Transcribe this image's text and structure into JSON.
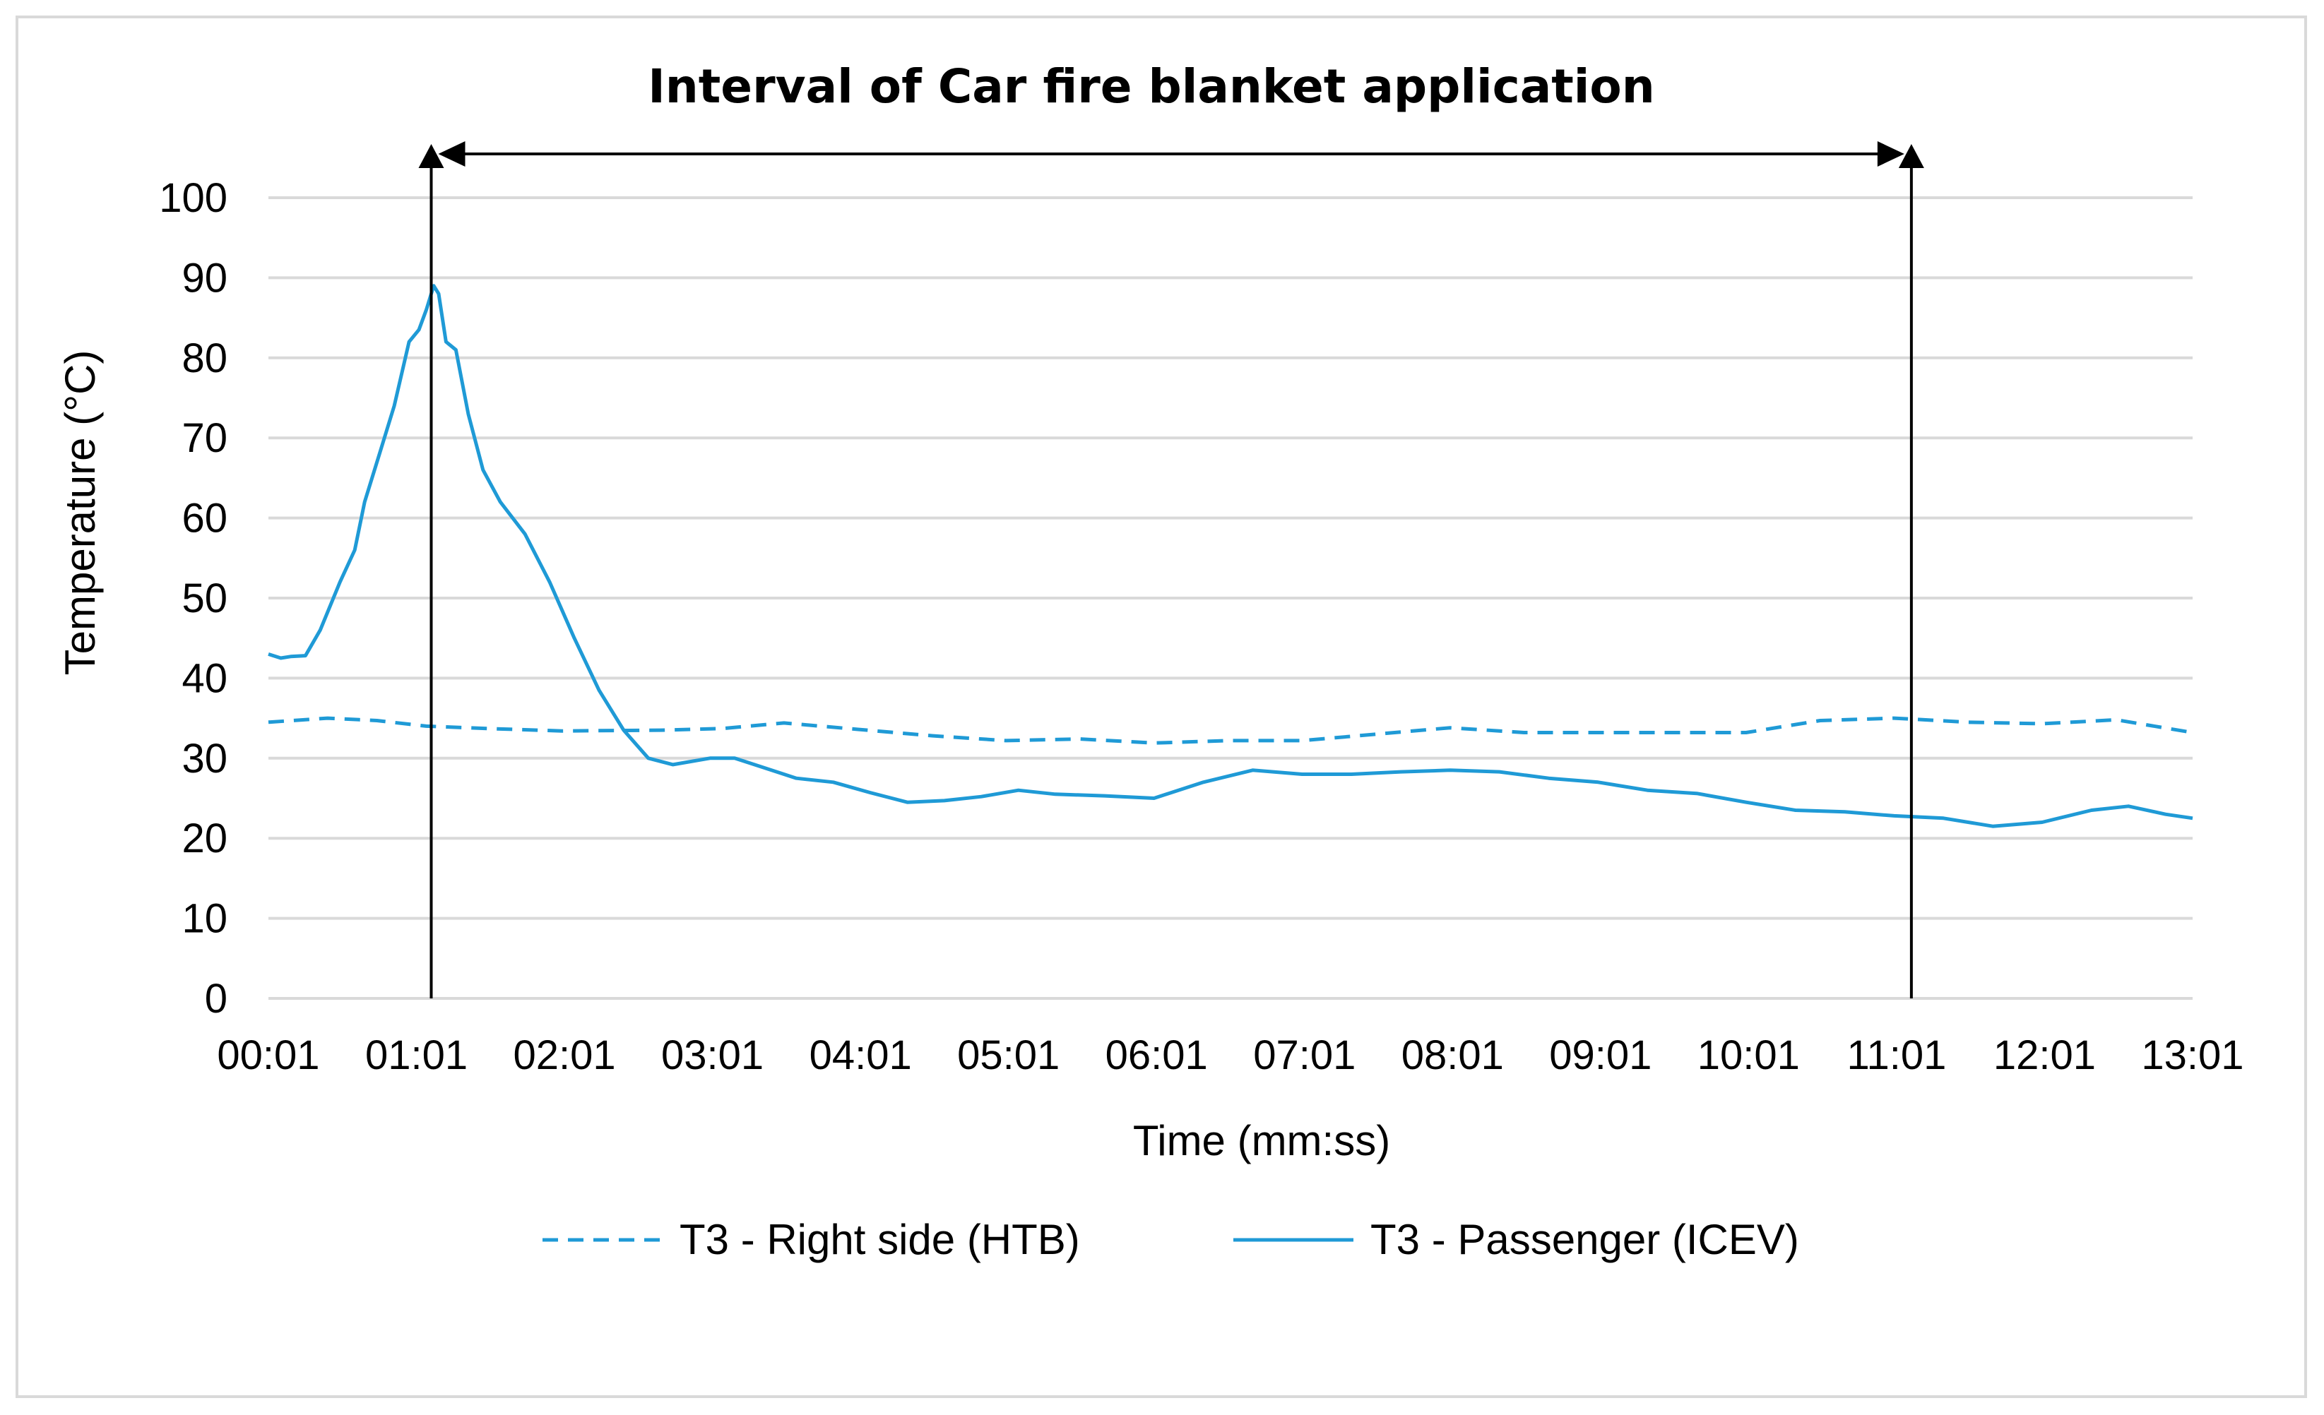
{
  "chart_data": {
    "type": "line",
    "title": "",
    "xlabel": "Time (mm:ss)",
    "ylabel": "Temperature (°C)",
    "ylim": [
      0,
      100
    ],
    "yticks": [
      0,
      10,
      20,
      30,
      40,
      50,
      60,
      70,
      80,
      90,
      100
    ],
    "xticks": [
      "00:01",
      "01:01",
      "02:01",
      "03:01",
      "04:01",
      "05:01",
      "06:01",
      "07:01",
      "08:01",
      "09:01",
      "10:01",
      "11:01",
      "12:01",
      "13:01"
    ],
    "xlim": [
      "00:01",
      "13:01"
    ],
    "grid": "horizontal",
    "legend_position": "bottom",
    "annotation": {
      "text": "Interval of Car fire blanket application",
      "start": "01:07",
      "end": "11:07"
    },
    "colors": {
      "series": "#1f9ad6",
      "grid": "#d9d9d9",
      "annotation": "#000000"
    },
    "series": [
      {
        "name": "T3 - Right side (HTB)",
        "style": "dashed",
        "x": [
          "00:01",
          "00:25",
          "00:45",
          "01:05",
          "01:30",
          "02:00",
          "02:40",
          "03:05",
          "03:30",
          "04:00",
          "04:30",
          "05:00",
          "05:30",
          "06:00",
          "06:30",
          "07:00",
          "07:30",
          "08:00",
          "08:30",
          "09:00",
          "09:30",
          "10:00",
          "10:30",
          "11:00",
          "11:30",
          "12:00",
          "12:30",
          "13:01"
        ],
        "values": [
          34.5,
          35,
          34.7,
          34,
          33.7,
          33.4,
          33.5,
          33.7,
          34.4,
          33.6,
          32.8,
          32.2,
          32.4,
          31.9,
          32.2,
          32.2,
          33,
          33.8,
          33.2,
          33.2,
          33.2,
          33.2,
          34.7,
          35,
          34.5,
          34.3,
          34.8,
          33.2
        ]
      },
      {
        "name": "T3 - Passenger (ICEV)",
        "style": "solid",
        "x": [
          "00:01",
          "00:06",
          "00:10",
          "00:16",
          "00:22",
          "00:30",
          "00:36",
          "00:40",
          "00:46",
          "00:52",
          "00:58",
          "01:02",
          "01:05",
          "01:08",
          "01:10",
          "01:13",
          "01:17",
          "01:22",
          "01:28",
          "01:35",
          "01:45",
          "01:55",
          "02:05",
          "02:15",
          "02:25",
          "02:35",
          "02:45",
          "03:00",
          "03:10",
          "03:20",
          "03:35",
          "03:50",
          "04:05",
          "04:20",
          "04:35",
          "04:50",
          "05:05",
          "05:20",
          "05:40",
          "06:00",
          "06:20",
          "06:40",
          "07:00",
          "07:20",
          "07:40",
          "08:00",
          "08:20",
          "08:40",
          "09:00",
          "09:20",
          "09:40",
          "10:00",
          "10:20",
          "10:40",
          "11:00",
          "11:20",
          "11:40",
          "12:00",
          "12:20",
          "12:35",
          "12:50",
          "13:01"
        ],
        "values": [
          43,
          42.5,
          42.7,
          42.8,
          46,
          52,
          56,
          62,
          68,
          74,
          82,
          83.5,
          86,
          89,
          88,
          82,
          81,
          73,
          66,
          62,
          58,
          52,
          45,
          38.5,
          33.5,
          30,
          29.2,
          30,
          30,
          29,
          27.5,
          27,
          25.7,
          24.5,
          24.7,
          25.2,
          26,
          25.5,
          25.3,
          25,
          27,
          28.5,
          28,
          28,
          28.3,
          28.5,
          28.3,
          27.5,
          27,
          26,
          25.6,
          24.5,
          23.5,
          23.3,
          22.8,
          22.5,
          21.5,
          22,
          23.5,
          24,
          23,
          22.5
        ]
      }
    ]
  }
}
